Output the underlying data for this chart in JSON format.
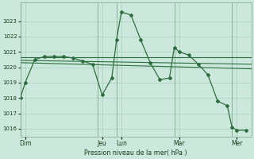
{
  "background_color": "#cce8dc",
  "grid_color": "#aacfc0",
  "line_color": "#2d6e3e",
  "xlabel": "Pression niveau de la mer( hPa )",
  "ylim": [
    1015.5,
    1024.2
  ],
  "yticks": [
    1016,
    1017,
    1018,
    1019,
    1020,
    1021,
    1022,
    1023
  ],
  "xlim": [
    0,
    24
  ],
  "day_labels": [
    "Dim",
    "Jeu",
    "Lun",
    "Mar",
    "Mer"
  ],
  "day_positions": [
    0.5,
    8.5,
    10.5,
    16.5,
    22.5
  ],
  "vline_positions": [
    0,
    8,
    10,
    16,
    22
  ],
  "main_series_x": [
    0,
    0.5,
    1.5,
    2.5,
    3.5,
    4.5,
    5.5,
    6.5,
    7.5,
    8.5,
    9.5,
    10.0,
    10.5,
    11.5,
    12.5,
    13.5,
    14.5,
    15.5,
    16.0,
    16.5,
    17.5,
    18.5,
    19.5,
    20.5,
    21.5,
    22.0,
    22.5,
    23.5
  ],
  "main_series_y": [
    1018.0,
    1019.0,
    1020.5,
    1020.7,
    1020.7,
    1020.7,
    1020.6,
    1020.4,
    1020.2,
    1018.2,
    1019.3,
    1021.8,
    1023.6,
    1023.4,
    1021.8,
    1020.3,
    1019.2,
    1019.3,
    1021.3,
    1021.0,
    1020.8,
    1020.2,
    1019.5,
    1017.8,
    1017.5,
    1016.1,
    1015.9,
    1015.9
  ],
  "flat_lines": [
    {
      "x": [
        0,
        24
      ],
      "y": [
        1020.65,
        1020.65
      ]
    },
    {
      "x": [
        0,
        24
      ],
      "y": [
        1020.45,
        1020.2
      ]
    },
    {
      "x": [
        0,
        24
      ],
      "y": [
        1020.3,
        1019.9
      ]
    }
  ]
}
